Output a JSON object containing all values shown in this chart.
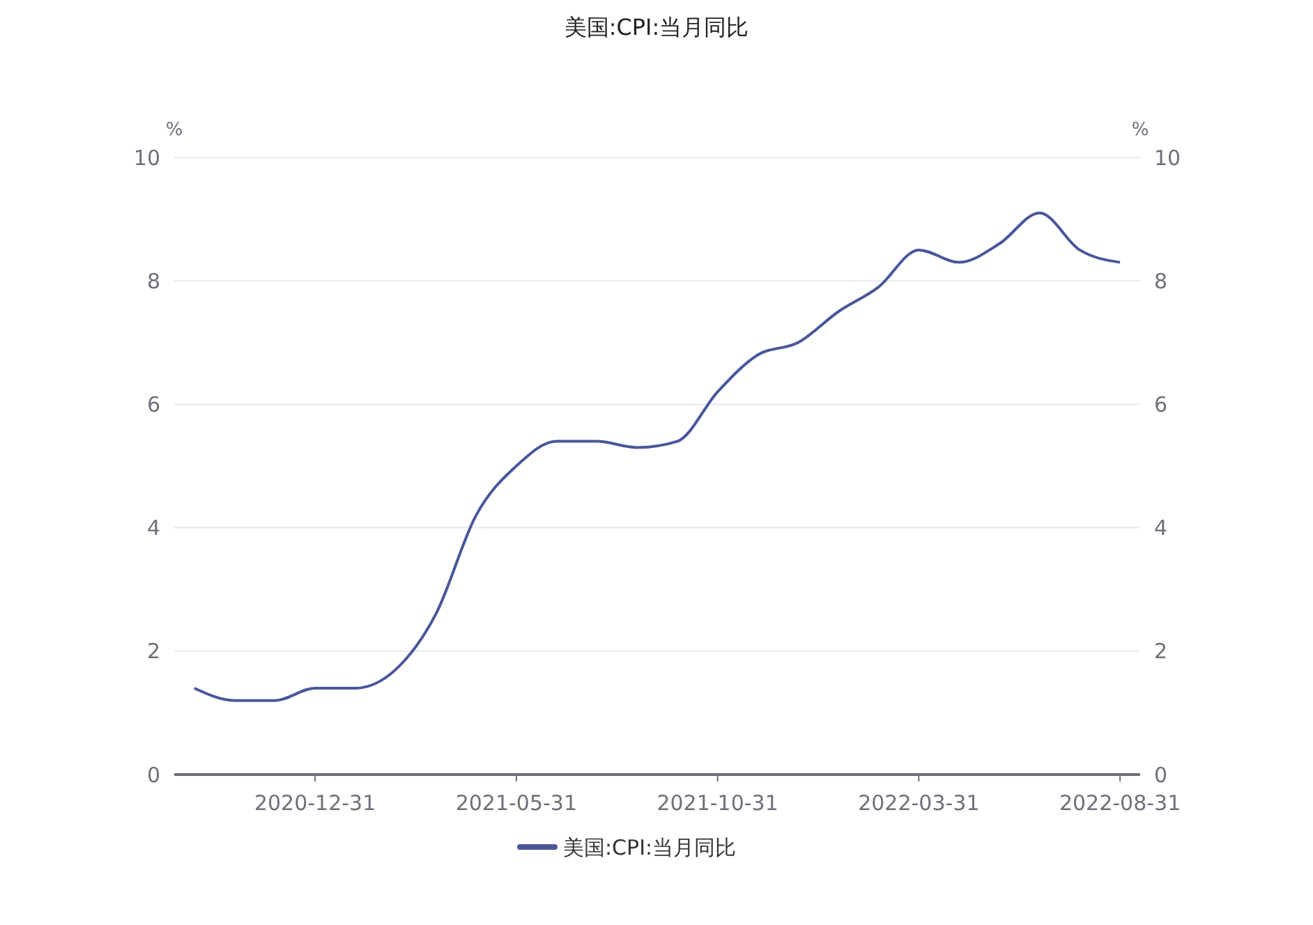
{
  "chart_data": {
    "type": "line",
    "title": "美国:CPI:当月同比",
    "ylabel": "%",
    "y2label": "%",
    "categories": [
      null,
      null,
      null,
      "2020-12-31",
      null,
      null,
      null,
      null,
      "2021-05-31",
      null,
      null,
      null,
      null,
      "2021-10-31",
      null,
      null,
      null,
      null,
      "2022-03-31",
      null,
      null,
      null,
      null,
      "2022-08-31"
    ],
    "series": [
      {
        "name": "美国:CPI:当月同比",
        "color": "#4a5699",
        "values": [
          1.4,
          1.2,
          1.2,
          1.4,
          1.4,
          1.7,
          2.6,
          4.2,
          5.0,
          5.4,
          5.4,
          5.3,
          5.4,
          6.2,
          6.8,
          7.0,
          7.5,
          7.9,
          8.5,
          8.3,
          8.6,
          9.1,
          8.5,
          8.3
        ]
      }
    ],
    "ylim": [
      0,
      10
    ],
    "yticks": [
      0,
      2,
      4,
      6,
      8,
      10
    ],
    "y2lim": [
      0,
      10
    ],
    "y2ticks": [
      0,
      2,
      4,
      6,
      8,
      10
    ],
    "grid": "y",
    "legend": "bottom",
    "marker": "none",
    "line_style": "solid"
  }
}
